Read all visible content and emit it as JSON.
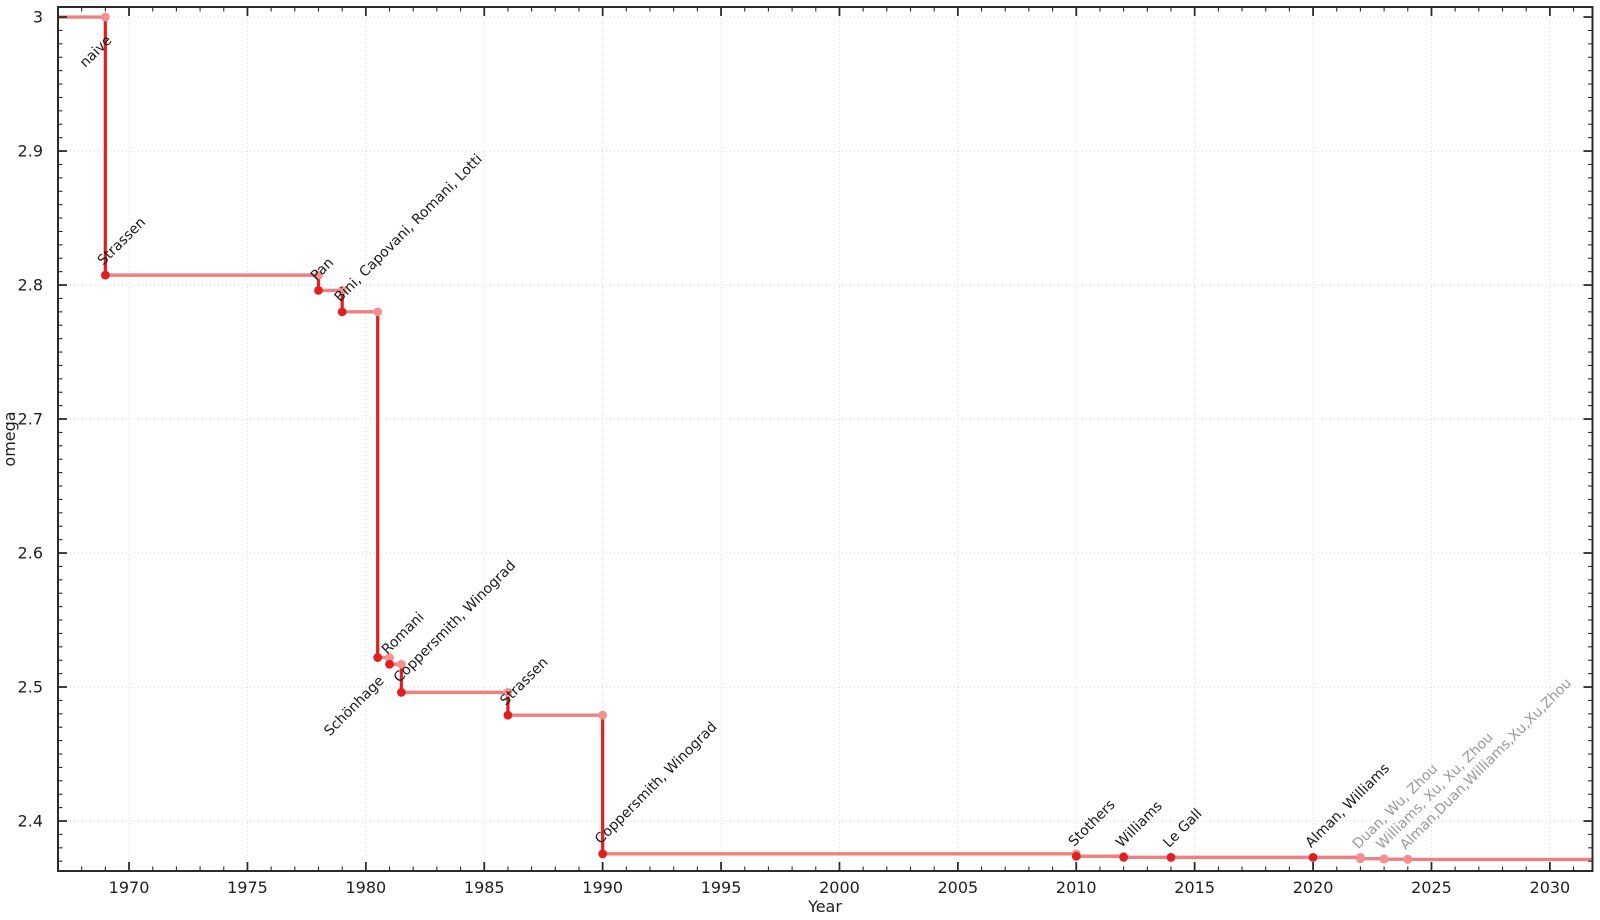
{
  "chart_data": {
    "type": "line",
    "style": "step-post",
    "title": "",
    "xlabel": "Year",
    "ylabel": "omega",
    "xlim": [
      1967.0,
      2031.8
    ],
    "ylim": [
      2.3627,
      3.0075
    ],
    "x_major_ticks": [
      1970,
      1975,
      1980,
      1985,
      1990,
      1995,
      2000,
      2005,
      2010,
      2015,
      2020,
      2025,
      2030
    ],
    "x_minor_step": 1,
    "y_major_ticks": [
      {
        "value": 3.0,
        "label": "3"
      },
      {
        "value": 2.9,
        "label": "2.9"
      },
      {
        "value": 2.8,
        "label": "2.8"
      },
      {
        "value": 2.7,
        "label": "2.7"
      },
      {
        "value": 2.6,
        "label": "2.6"
      },
      {
        "value": 2.5,
        "label": "2.5"
      },
      {
        "value": 2.4,
        "label": "2.4"
      }
    ],
    "y_minor_step": 0.01,
    "grid": {
      "show_major": true,
      "show_minor": false,
      "line_style": "dotted"
    },
    "legend": "none",
    "start": {
      "omega": 3.0,
      "label": "naive",
      "label_year": 1969,
      "label_side": "lower",
      "status": "published"
    },
    "points": [
      {
        "year": 1969,
        "omega": 2.8074,
        "label": "Strassen",
        "status": "published",
        "label_side": "upper"
      },
      {
        "year": 1978,
        "omega": 2.796,
        "label": "Pan",
        "status": "published",
        "label_side": "upper"
      },
      {
        "year": 1979,
        "omega": 2.78,
        "label": "Bini, Capovani, Romani, Lotti",
        "status": "published",
        "label_side": "upper"
      },
      {
        "year": 1980.5,
        "omega": 2.522,
        "label": "Schönhage",
        "status": "published",
        "label_side": "lower"
      },
      {
        "year": 1981,
        "omega": 2.517,
        "label": "Romani",
        "status": "published",
        "label_side": "upper"
      },
      {
        "year": 1981.5,
        "omega": 2.496,
        "label": "Coppersmith, Winograd",
        "status": "published",
        "label_side": "upper"
      },
      {
        "year": 1986,
        "omega": 2.479,
        "label": "Strassen",
        "status": "published",
        "label_side": "upper"
      },
      {
        "year": 1990,
        "omega": 2.3755,
        "label": "Coppersmith, Winograd",
        "status": "published",
        "label_side": "upper"
      },
      {
        "year": 2010,
        "omega": 2.3737,
        "label": "Stothers",
        "status": "published",
        "label_side": "upper"
      },
      {
        "year": 2012,
        "omega": 2.3729,
        "label": "Williams",
        "status": "published",
        "label_side": "upper"
      },
      {
        "year": 2014,
        "omega": 2.3728639,
        "label": "Le Gall",
        "status": "published",
        "label_side": "upper"
      },
      {
        "year": 2020,
        "omega": 2.3728596,
        "label": "Alman, Williams",
        "status": "published",
        "label_side": "upper"
      },
      {
        "year": 2022,
        "omega": 2.371866,
        "label": "Duan, Wu, Zhou",
        "status": "preprint",
        "label_side": "upper"
      },
      {
        "year": 2023,
        "omega": 2.371552,
        "label": "Williams, Xu, Xu, Zhou",
        "status": "preprint",
        "label_side": "upper"
      },
      {
        "year": 2024,
        "omega": 2.371339,
        "label": "Alman,Duan,Williams,Xu,Xu,Zhou",
        "status": "preprint",
        "label_side": "upper"
      }
    ],
    "colors": {
      "step_line": "#f08080",
      "drop_line": "#e02020",
      "marker_new_published": "#e02020",
      "marker_new_preprint": "#f49090",
      "marker_old": "#f49090",
      "label_published": "#1a1a1a",
      "label_preprint": "#999999",
      "grid": "#d9d9d9",
      "spine": "#2b2b2b",
      "tick_label": "#1f1f1f"
    }
  }
}
